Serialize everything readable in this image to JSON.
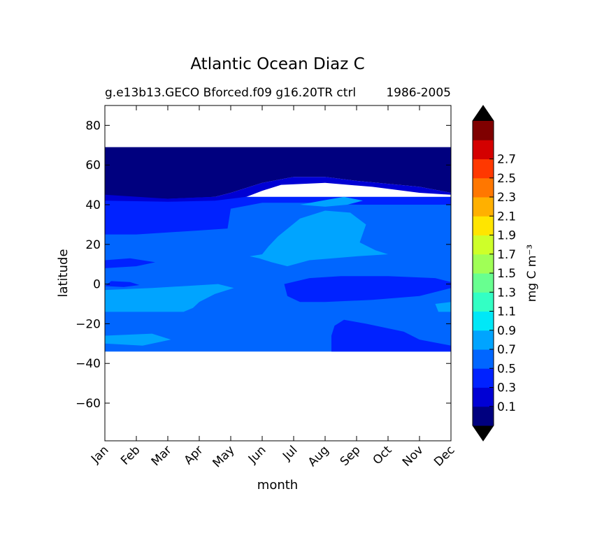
{
  "chart_data": {
    "type": "heatmap",
    "title": "Atlantic Ocean Diaz C",
    "subtitle_left": "g.e13b13.GECO Bforced.f09 g16.20TR ctrl",
    "subtitle_right": "1986-2005",
    "xlabel": "month",
    "ylabel": "latitude",
    "x_ticks": [
      "Jan",
      "Feb",
      "Mar",
      "Apr",
      "May",
      "Jun",
      "Jul",
      "Aug",
      "Sep",
      "Oct",
      "Nov",
      "Dec"
    ],
    "x_range": [
      0,
      11
    ],
    "y_ticks": [
      80,
      60,
      40,
      20,
      0,
      -20,
      -40,
      -60
    ],
    "y_range": [
      -79,
      90
    ],
    "data_lat_range": [
      -34,
      69
    ],
    "grid": false,
    "colorbar": {
      "label": "mg C m⁻³",
      "placement": "right",
      "levels": [
        0,
        0.1,
        0.3,
        0.5,
        0.7,
        0.9,
        1.1,
        1.3,
        1.5,
        1.7,
        1.9,
        2.1,
        2.3,
        2.5,
        2.7,
        2.9
      ],
      "tick_labels": [
        "0.1",
        "0.3",
        "0.5",
        "0.7",
        "0.9",
        "1.1",
        "1.3",
        "1.5",
        "1.7",
        "1.9",
        "2.1",
        "2.3",
        "2.5",
        "2.7"
      ],
      "colors": [
        "#00007f",
        "#0000d4",
        "#0022ff",
        "#0066ff",
        "#00a4ff",
        "#00e8f7",
        "#33ffc4",
        "#68ff90",
        "#a0ff56",
        "#ceff29",
        "#ffe500",
        "#ffb000",
        "#ff7700",
        "#ff3800",
        "#d40000",
        "#7f0000"
      ],
      "extend_low_color": "#000000",
      "extend_high_color": "#000000"
    },
    "regions": [
      {
        "level_index": 3,
        "points": [
          [
            0,
            -34
          ],
          [
            11,
            -34
          ],
          [
            11,
            42
          ],
          [
            0,
            42
          ]
        ]
      },
      {
        "level_index": 2,
        "points": [
          [
            0,
            44
          ],
          [
            11,
            44
          ],
          [
            11,
            40
          ],
          [
            8,
            40
          ],
          [
            6.5,
            41
          ],
          [
            5,
            41
          ],
          [
            4,
            38
          ],
          [
            3.9,
            28
          ],
          [
            3,
            27
          ],
          [
            1,
            25
          ],
          [
            0,
            25
          ]
        ]
      },
      {
        "level_index": 0,
        "points": [
          [
            0,
            69
          ],
          [
            11,
            69
          ],
          [
            11,
            46
          ],
          [
            10,
            49
          ],
          [
            8,
            52
          ],
          [
            7,
            54
          ],
          [
            6,
            54
          ],
          [
            5,
            51
          ],
          [
            4.8,
            50
          ],
          [
            4,
            46
          ],
          [
            3.5,
            44
          ],
          [
            2,
            43
          ],
          [
            0,
            44
          ]
        ]
      },
      {
        "level_index": 1,
        "points": [
          [
            0,
            45
          ],
          [
            2,
            43
          ],
          [
            3.5,
            44
          ],
          [
            4,
            46
          ],
          [
            4.8,
            50
          ],
          [
            5,
            51
          ],
          [
            6,
            54
          ],
          [
            7,
            54
          ],
          [
            8,
            52
          ],
          [
            10,
            49
          ],
          [
            11,
            46
          ],
          [
            11,
            45
          ],
          [
            10,
            46
          ],
          [
            8.5,
            49
          ],
          [
            7,
            51
          ],
          [
            5.6,
            50
          ],
          [
            5,
            47
          ],
          [
            4.5,
            44
          ],
          [
            3.5,
            42
          ],
          [
            2,
            41.5
          ],
          [
            0,
            42
          ]
        ]
      },
      {
        "level_index": 2,
        "points": [
          [
            0,
            -1
          ],
          [
            0.6,
            -1.5
          ],
          [
            1.1,
            -0.5
          ],
          [
            0.8,
            1
          ],
          [
            0.2,
            1.5
          ]
        ]
      },
      {
        "level_index": 2,
        "points": [
          [
            0,
            8
          ],
          [
            1,
            9
          ],
          [
            1.6,
            11
          ],
          [
            0.8,
            13
          ],
          [
            0,
            12
          ]
        ]
      },
      {
        "level_index": 2,
        "points": [
          [
            5.7,
            0
          ],
          [
            6.5,
            3
          ],
          [
            7.5,
            4
          ],
          [
            9,
            4
          ],
          [
            10.5,
            3
          ],
          [
            11,
            1
          ],
          [
            11,
            -2
          ],
          [
            10,
            -6
          ],
          [
            8.5,
            -8
          ],
          [
            7,
            -9
          ],
          [
            6.2,
            -9
          ],
          [
            5.8,
            -6
          ]
        ]
      },
      {
        "level_index": 2,
        "points": [
          [
            7.2,
            -34
          ],
          [
            11,
            -34
          ],
          [
            11,
            -31
          ],
          [
            10,
            -28
          ],
          [
            9.5,
            -24
          ],
          [
            8.3,
            -20
          ],
          [
            7.6,
            -18
          ],
          [
            7.3,
            -21
          ],
          [
            7.2,
            -26
          ]
        ]
      },
      {
        "level_index": 4,
        "points": [
          [
            0,
            -14
          ],
          [
            2.5,
            -14
          ],
          [
            2.8,
            -12
          ],
          [
            3,
            -9
          ],
          [
            3.5,
            -5
          ],
          [
            4.1,
            -2
          ],
          [
            3.6,
            0
          ],
          [
            1.5,
            -2
          ],
          [
            0,
            -3
          ]
        ]
      },
      {
        "level_index": 4,
        "points": [
          [
            0,
            -26
          ],
          [
            1.5,
            -25
          ],
          [
            2.1,
            -28
          ],
          [
            1.2,
            -31
          ],
          [
            0,
            -30
          ]
        ]
      },
      {
        "level_index": 4,
        "points": [
          [
            4.6,
            14
          ],
          [
            5,
            15
          ],
          [
            5.2,
            19
          ],
          [
            5.5,
            24
          ],
          [
            6.2,
            33
          ],
          [
            7,
            37
          ],
          [
            7.8,
            36
          ],
          [
            8.3,
            30
          ],
          [
            8.1,
            21
          ],
          [
            8.6,
            17
          ],
          [
            9,
            15
          ],
          [
            8,
            14
          ],
          [
            6.5,
            12
          ],
          [
            5.8,
            9
          ],
          [
            5.3,
            11
          ],
          [
            4.9,
            13
          ]
        ]
      },
      {
        "level_index": 4,
        "points": [
          [
            6.2,
            40
          ],
          [
            6.9,
            42
          ],
          [
            7.6,
            44
          ],
          [
            8.2,
            42
          ],
          [
            7.7,
            40
          ],
          [
            7,
            39
          ]
        ]
      },
      {
        "level_index": 4,
        "points": [
          [
            10.6,
            -14
          ],
          [
            11,
            -14
          ],
          [
            11,
            -9
          ],
          [
            10.5,
            -10
          ]
        ]
      }
    ]
  }
}
